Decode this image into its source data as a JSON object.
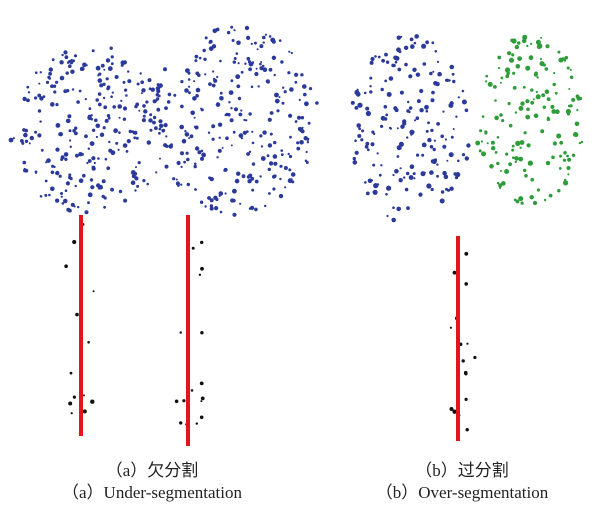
{
  "panels": [
    {
      "caption_cn": "（a）欠分割",
      "caption_en": "（a）Under-segmentation"
    },
    {
      "caption_cn": "（b）过分割",
      "caption_en": "（b）Over-segmentation"
    }
  ]
}
